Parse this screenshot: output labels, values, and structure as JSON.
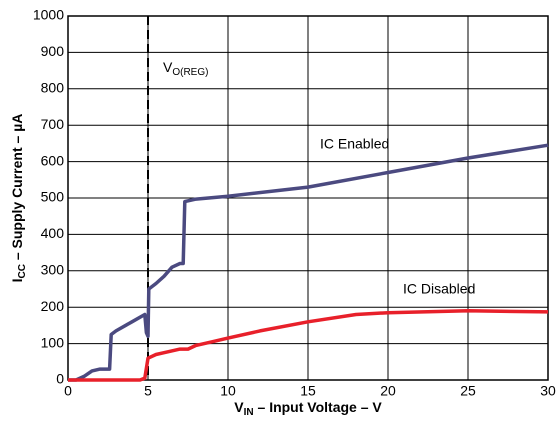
{
  "chart_data": {
    "type": "line",
    "xlabel": {
      "main": "V",
      "sub": "IN",
      "rest": " – Input Voltage – V"
    },
    "ylabel": {
      "main": "I",
      "sub": "CC",
      "rest": " – Supply Current – µA"
    },
    "xlim": [
      0,
      30
    ],
    "xticks": [
      0,
      5,
      10,
      15,
      20,
      25,
      30
    ],
    "ylim": [
      0,
      1000
    ],
    "yticks": [
      0,
      100,
      200,
      300,
      400,
      500,
      600,
      700,
      800,
      900,
      1000
    ],
    "grid": true,
    "vline": {
      "x": 5,
      "label": {
        "main": "V",
        "sub": "O(REG)"
      }
    },
    "series": [
      {
        "name": "IC Enabled",
        "color": "#4b4a80",
        "x": [
          0,
          0.5,
          1,
          1.5,
          2,
          2.6,
          2.7,
          3,
          4,
          4.8,
          4.9,
          5,
          5.05,
          5.5,
          6,
          6.5,
          7,
          7.2,
          7.3,
          8,
          10,
          15,
          20,
          25,
          30
        ],
        "values": [
          0,
          0,
          10,
          25,
          30,
          30,
          125,
          135,
          160,
          180,
          130,
          120,
          250,
          265,
          285,
          310,
          320,
          320,
          490,
          497,
          505,
          530,
          570,
          610,
          645
        ]
      },
      {
        "name": "IC Disabled",
        "color": "#e8202a",
        "x": [
          0,
          4.5,
          4.8,
          5,
          5.5,
          6,
          7,
          7.5,
          8,
          9,
          10,
          12,
          15,
          18,
          20,
          25,
          30
        ],
        "values": [
          0,
          0,
          5,
          60,
          70,
          75,
          85,
          85,
          95,
          105,
          115,
          135,
          160,
          180,
          185,
          190,
          187
        ]
      }
    ]
  }
}
